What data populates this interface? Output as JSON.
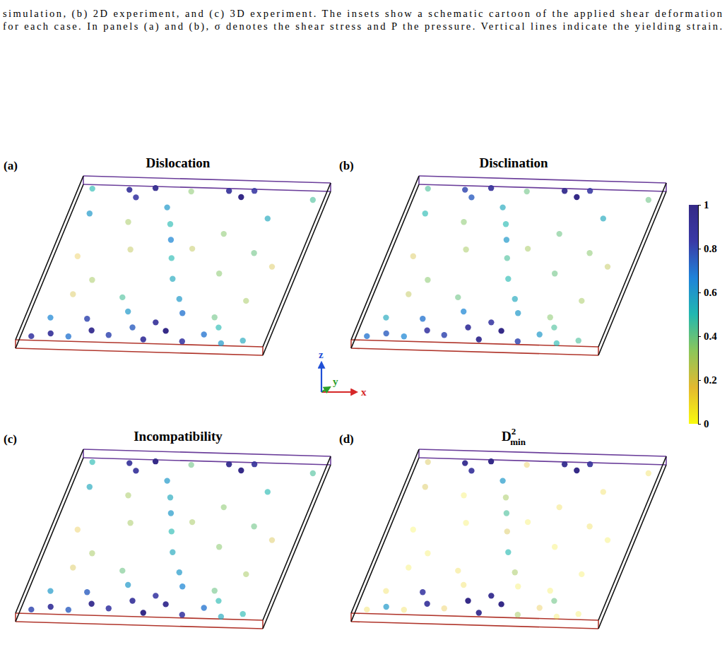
{
  "caption": [
    "simulation, (b) 2D experiment, and (c) 3D experiment. The insets show a schematic cartoon of the applied shear deformation",
    "for each case. In panels (a) and (b), σ denotes the shear stress and P the pressure. Vertical lines indicate the yielding strain."
  ],
  "axis_labels": [
    "x",
    "y",
    "z"
  ],
  "colorbar": {
    "range": [
      0,
      1
    ],
    "ticks": [
      0,
      0.2,
      0.4,
      0.6,
      0.8,
      1
    ]
  },
  "chart_data": [
    {
      "type": "scatter3d",
      "panel": "(a)",
      "title": "Dislocation",
      "tick_labels": false,
      "xlim": [
        0,
        1
      ],
      "ylim": [
        0,
        1
      ],
      "zlim": [
        0,
        1
      ],
      "x": [
        0.05,
        0.12,
        0.2,
        0.28,
        0.36,
        0.44,
        0.5,
        0.58,
        0.66,
        0.74,
        0.82,
        0.9,
        0.1,
        0.24,
        0.4,
        0.52,
        0.62,
        0.78,
        0.58,
        0.52,
        0.48,
        0.45,
        0.42,
        0.38,
        0.2,
        0.24,
        0.3,
        0.6,
        0.66,
        0.7,
        0.08,
        0.8,
        0.2,
        0.3,
        0.7,
        0.8,
        0.15,
        0.85,
        0.1,
        0.9,
        0.35,
        0.65,
        0.25,
        0.75,
        0.55,
        0.05,
        0.95,
        0.45
      ],
      "y": [
        0.5,
        0.3,
        0.6,
        0.4,
        0.7,
        0.5,
        0.3,
        0.6,
        0.4,
        0.7,
        0.5,
        0.3,
        0.8,
        0.2,
        0.8,
        0.2,
        0.8,
        0.2,
        0.5,
        0.5,
        0.4,
        0.6,
        0.5,
        0.5,
        0.5,
        0.6,
        0.4,
        0.5,
        0.6,
        0.4,
        0.5,
        0.5,
        0.5,
        0.3,
        0.7,
        0.3,
        0.7,
        0.5,
        0.3,
        0.7,
        0.5,
        0.5,
        0.6,
        0.4,
        0.6,
        0.5,
        0.5,
        0.5
      ],
      "z": [
        0.05,
        0.08,
        0.05,
        0.1,
        0.06,
        0.12,
        0.06,
        0.1,
        0.05,
        0.08,
        0.04,
        0.07,
        0.15,
        0.18,
        0.2,
        0.17,
        0.2,
        0.15,
        0.3,
        0.42,
        0.55,
        0.65,
        0.75,
        0.85,
        0.95,
        0.9,
        0.97,
        0.96,
        0.92,
        0.97,
        0.8,
        0.8,
        0.4,
        0.6,
        0.45,
        0.6,
        0.3,
        0.3,
        0.55,
        0.5,
        0.3,
        0.7,
        0.75,
        0.2,
        0.6,
        0.95,
        0.92,
        0.95
      ],
      "values": [
        0.85,
        0.9,
        0.7,
        0.95,
        0.8,
        0.75,
        0.9,
        1.0,
        0.85,
        0.7,
        0.6,
        0.55,
        0.65,
        0.8,
        0.6,
        0.9,
        0.7,
        0.5,
        0.6,
        0.55,
        0.5,
        0.65,
        0.5,
        0.6,
        0.9,
        0.85,
        0.95,
        0.9,
        1.0,
        0.85,
        0.6,
        0.55,
        0.3,
        0.25,
        0.35,
        0.4,
        0.2,
        0.3,
        0.15,
        0.2,
        0.45,
        0.35,
        0.3,
        0.4,
        0.25,
        0.5,
        0.45,
        0.35
      ]
    },
    {
      "type": "scatter3d",
      "panel": "(b)",
      "title": "Disclination",
      "tick_labels": false,
      "xlim": [
        0,
        1
      ],
      "ylim": [
        0,
        1
      ],
      "zlim": [
        0,
        1
      ],
      "x": [
        0.05,
        0.12,
        0.2,
        0.28,
        0.36,
        0.44,
        0.5,
        0.58,
        0.66,
        0.74,
        0.82,
        0.9,
        0.1,
        0.24,
        0.4,
        0.52,
        0.62,
        0.78,
        0.58,
        0.52,
        0.48,
        0.45,
        0.42,
        0.38,
        0.2,
        0.24,
        0.3,
        0.6,
        0.66,
        0.7,
        0.08,
        0.8,
        0.2,
        0.3,
        0.7,
        0.8,
        0.15,
        0.85,
        0.1,
        0.9,
        0.35,
        0.65,
        0.25,
        0.75,
        0.55,
        0.05,
        0.95,
        0.45
      ],
      "y": [
        0.5,
        0.3,
        0.6,
        0.4,
        0.7,
        0.5,
        0.3,
        0.6,
        0.4,
        0.7,
        0.5,
        0.3,
        0.8,
        0.2,
        0.8,
        0.2,
        0.8,
        0.2,
        0.5,
        0.5,
        0.4,
        0.6,
        0.5,
        0.5,
        0.5,
        0.6,
        0.4,
        0.5,
        0.6,
        0.4,
        0.5,
        0.5,
        0.5,
        0.3,
        0.7,
        0.3,
        0.7,
        0.5,
        0.3,
        0.7,
        0.5,
        0.5,
        0.6,
        0.4,
        0.6,
        0.5,
        0.5,
        0.5
      ],
      "z": [
        0.05,
        0.08,
        0.05,
        0.1,
        0.06,
        0.12,
        0.06,
        0.1,
        0.05,
        0.08,
        0.04,
        0.07,
        0.15,
        0.18,
        0.2,
        0.17,
        0.2,
        0.15,
        0.3,
        0.42,
        0.55,
        0.65,
        0.75,
        0.85,
        0.95,
        0.9,
        0.97,
        0.96,
        0.92,
        0.97,
        0.8,
        0.8,
        0.4,
        0.6,
        0.45,
        0.6,
        0.3,
        0.3,
        0.55,
        0.5,
        0.3,
        0.7,
        0.75,
        0.2,
        0.6,
        0.95,
        0.92,
        0.95
      ],
      "values": [
        0.7,
        0.75,
        0.65,
        0.85,
        0.8,
        0.9,
        0.95,
        1.0,
        0.8,
        0.6,
        0.5,
        0.45,
        0.55,
        0.7,
        0.65,
        0.85,
        0.6,
        0.45,
        0.55,
        0.5,
        0.45,
        0.6,
        0.5,
        0.55,
        0.8,
        0.75,
        0.9,
        0.95,
        1.0,
        0.85,
        0.5,
        0.55,
        0.35,
        0.3,
        0.4,
        0.35,
        0.25,
        0.3,
        0.2,
        0.25,
        0.4,
        0.4,
        0.35,
        0.35,
        0.3,
        0.45,
        0.4,
        0.4
      ]
    },
    {
      "type": "scatter3d",
      "panel": "(c)",
      "title": "Incompatibility",
      "tick_labels": false,
      "xlim": [
        0,
        1
      ],
      "ylim": [
        0,
        1
      ],
      "zlim": [
        0,
        1
      ],
      "x": [
        0.05,
        0.12,
        0.2,
        0.28,
        0.36,
        0.44,
        0.5,
        0.58,
        0.66,
        0.74,
        0.82,
        0.9,
        0.1,
        0.24,
        0.4,
        0.52,
        0.62,
        0.78,
        0.58,
        0.52,
        0.48,
        0.45,
        0.42,
        0.38,
        0.2,
        0.24,
        0.3,
        0.6,
        0.66,
        0.7,
        0.08,
        0.8,
        0.2,
        0.3,
        0.7,
        0.8,
        0.15,
        0.85,
        0.1,
        0.9,
        0.35,
        0.65,
        0.25,
        0.75,
        0.55,
        0.05,
        0.95,
        0.45
      ],
      "y": [
        0.5,
        0.3,
        0.6,
        0.4,
        0.7,
        0.5,
        0.3,
        0.6,
        0.4,
        0.7,
        0.5,
        0.3,
        0.8,
        0.2,
        0.8,
        0.2,
        0.8,
        0.2,
        0.5,
        0.5,
        0.4,
        0.6,
        0.5,
        0.5,
        0.5,
        0.6,
        0.4,
        0.5,
        0.6,
        0.4,
        0.5,
        0.5,
        0.5,
        0.3,
        0.7,
        0.3,
        0.7,
        0.5,
        0.3,
        0.7,
        0.5,
        0.5,
        0.6,
        0.4,
        0.6,
        0.5,
        0.5,
        0.5
      ],
      "z": [
        0.05,
        0.08,
        0.05,
        0.1,
        0.06,
        0.12,
        0.06,
        0.1,
        0.05,
        0.08,
        0.04,
        0.07,
        0.15,
        0.18,
        0.2,
        0.17,
        0.2,
        0.15,
        0.3,
        0.42,
        0.55,
        0.65,
        0.75,
        0.85,
        0.95,
        0.9,
        0.97,
        0.96,
        0.92,
        0.97,
        0.8,
        0.8,
        0.4,
        0.6,
        0.45,
        0.6,
        0.3,
        0.3,
        0.55,
        0.5,
        0.3,
        0.7,
        0.75,
        0.2,
        0.6,
        0.95,
        0.92,
        0.95
      ],
      "values": [
        0.8,
        0.9,
        0.75,
        0.95,
        0.85,
        0.9,
        1.0,
        0.95,
        0.85,
        0.7,
        0.55,
        0.5,
        0.6,
        0.75,
        0.6,
        0.85,
        0.65,
        0.5,
        0.6,
        0.55,
        0.5,
        0.6,
        0.55,
        0.6,
        0.9,
        0.9,
        1.0,
        0.95,
        1.0,
        0.9,
        0.55,
        0.5,
        0.3,
        0.3,
        0.35,
        0.4,
        0.2,
        0.3,
        0.15,
        0.2,
        0.4,
        0.35,
        0.3,
        0.4,
        0.3,
        0.5,
        0.45,
        0.4
      ]
    },
    {
      "type": "scatter3d",
      "panel": "(d)",
      "title": "D",
      "title_superscript": "2",
      "title_subscript": "min",
      "tick_labels": false,
      "xlim": [
        0,
        1
      ],
      "ylim": [
        0,
        1
      ],
      "zlim": [
        0,
        1
      ],
      "x": [
        0.05,
        0.12,
        0.2,
        0.28,
        0.36,
        0.44,
        0.5,
        0.58,
        0.66,
        0.74,
        0.82,
        0.9,
        0.1,
        0.24,
        0.4,
        0.52,
        0.62,
        0.78,
        0.58,
        0.52,
        0.48,
        0.45,
        0.42,
        0.38,
        0.2,
        0.24,
        0.3,
        0.6,
        0.66,
        0.7,
        0.08,
        0.8,
        0.2,
        0.3,
        0.7,
        0.8,
        0.15,
        0.85,
        0.1,
        0.9,
        0.35,
        0.65,
        0.25,
        0.75,
        0.55,
        0.05,
        0.95,
        0.45
      ],
      "y": [
        0.5,
        0.3,
        0.6,
        0.4,
        0.7,
        0.5,
        0.3,
        0.6,
        0.4,
        0.7,
        0.5,
        0.3,
        0.8,
        0.2,
        0.8,
        0.2,
        0.8,
        0.2,
        0.5,
        0.5,
        0.4,
        0.6,
        0.5,
        0.5,
        0.5,
        0.6,
        0.4,
        0.5,
        0.6,
        0.4,
        0.5,
        0.5,
        0.5,
        0.3,
        0.7,
        0.3,
        0.7,
        0.5,
        0.3,
        0.7,
        0.5,
        0.5,
        0.6,
        0.4,
        0.6,
        0.5,
        0.5,
        0.5
      ],
      "z": [
        0.05,
        0.08,
        0.05,
        0.1,
        0.06,
        0.12,
        0.06,
        0.1,
        0.05,
        0.08,
        0.04,
        0.07,
        0.15,
        0.18,
        0.2,
        0.17,
        0.2,
        0.15,
        0.3,
        0.42,
        0.55,
        0.65,
        0.75,
        0.85,
        0.95,
        0.9,
        0.97,
        0.96,
        0.92,
        0.97,
        0.8,
        0.8,
        0.4,
        0.6,
        0.45,
        0.6,
        0.3,
        0.3,
        0.55,
        0.5,
        0.3,
        0.7,
        0.75,
        0.2,
        0.6,
        0.95,
        0.92,
        0.95
      ],
      "values": [
        0.1,
        0.6,
        0.1,
        0.9,
        0.15,
        1.0,
        0.95,
        1.0,
        0.3,
        0.15,
        0.05,
        0.05,
        0.1,
        0.85,
        0.1,
        0.95,
        0.05,
        0.4,
        0.3,
        0.5,
        0.2,
        0.45,
        0.3,
        0.6,
        0.95,
        0.9,
        1.0,
        0.95,
        1.0,
        0.9,
        0.2,
        0.1,
        0.05,
        0.05,
        0.05,
        0.1,
        0.05,
        0.05,
        0.03,
        0.05,
        0.1,
        0.1,
        0.05,
        0.05,
        0.05,
        0.2,
        0.1,
        0.15
      ]
    }
  ]
}
